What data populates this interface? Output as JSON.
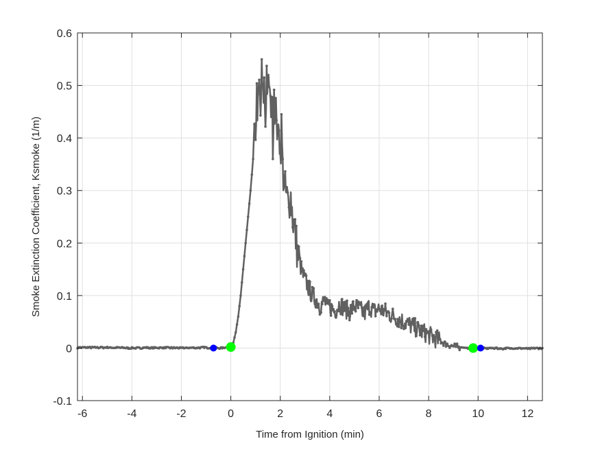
{
  "chart_data": {
    "type": "line",
    "title": "",
    "xlabel": "Time from Ignition (min)",
    "ylabel": "Smoke Extinction Coefficient, Ksmoke (1/m)",
    "xlim": [
      -6.2,
      12.6
    ],
    "ylim": [
      -0.1,
      0.6
    ],
    "xticks": [
      -6,
      -4,
      -2,
      0,
      2,
      4,
      6,
      8,
      10,
      12
    ],
    "yticks": [
      -0.1,
      0,
      0.1,
      0.2,
      0.3,
      0.4,
      0.5,
      0.6
    ],
    "xtick_labels": [
      "-6",
      "-4",
      "-2",
      "0",
      "2",
      "4",
      "6",
      "8",
      "10",
      "12"
    ],
    "ytick_labels": [
      "-0.1",
      "0",
      "0.1",
      "0.2",
      "0.3",
      "0.4",
      "0.5",
      "0.6"
    ],
    "grid": true,
    "legend": null,
    "series": [
      {
        "name": "Ksmoke",
        "color": "#606060",
        "marker": "dot",
        "x": [
          -6.2,
          -5.0,
          -4.0,
          -3.0,
          -2.0,
          -1.0,
          -0.5,
          0.0,
          0.1,
          0.2,
          0.3,
          0.4,
          0.5,
          0.6,
          0.7,
          0.8,
          0.9,
          1.0,
          1.05,
          1.1,
          1.15,
          1.2,
          1.25,
          1.3,
          1.35,
          1.4,
          1.45,
          1.5,
          1.55,
          1.6,
          1.65,
          1.7,
          1.75,
          1.8,
          1.85,
          1.9,
          1.95,
          2.0,
          2.05,
          2.1,
          2.2,
          2.3,
          2.35,
          2.4,
          2.5,
          2.6,
          2.7,
          2.8,
          2.9,
          3.0,
          3.1,
          3.2,
          3.3,
          3.4,
          3.5,
          3.6,
          3.7,
          3.8,
          3.9,
          4.0,
          4.2,
          4.4,
          4.6,
          4.8,
          5.0,
          5.2,
          5.4,
          5.6,
          5.8,
          6.0,
          6.2,
          6.4,
          6.6,
          6.8,
          7.0,
          7.2,
          7.4,
          7.6,
          7.8,
          8.0,
          8.2,
          8.4,
          8.6,
          8.8,
          9.0,
          9.2,
          9.4,
          9.6,
          9.8,
          10.0,
          10.5,
          11.0,
          11.5,
          12.0,
          12.6
        ],
        "y": [
          0.001,
          0.001,
          0.0,
          0.001,
          0.0,
          0.001,
          0.0,
          0.002,
          0.01,
          0.03,
          0.06,
          0.1,
          0.15,
          0.2,
          0.25,
          0.3,
          0.36,
          0.42,
          0.48,
          0.45,
          0.5,
          0.44,
          0.52,
          0.47,
          0.5,
          0.43,
          0.53,
          0.48,
          0.51,
          0.45,
          0.49,
          0.4,
          0.5,
          0.43,
          0.46,
          0.38,
          0.44,
          0.36,
          0.42,
          0.34,
          0.3,
          0.28,
          0.26,
          0.3,
          0.25,
          0.22,
          0.18,
          0.16,
          0.14,
          0.13,
          0.12,
          0.11,
          0.1,
          0.095,
          0.09,
          0.08,
          0.085,
          0.09,
          0.075,
          0.08,
          0.07,
          0.085,
          0.075,
          0.07,
          0.08,
          0.075,
          0.065,
          0.08,
          0.07,
          0.075,
          0.07,
          0.065,
          0.06,
          0.055,
          0.05,
          0.045,
          0.04,
          0.035,
          0.03,
          0.025,
          0.02,
          0.015,
          0.01,
          0.006,
          0.004,
          0.002,
          0.001,
          0.0,
          0.0,
          -0.001,
          0.0,
          -0.001,
          0.0,
          -0.001,
          0.0
        ]
      }
    ],
    "annotations": [
      {
        "type": "marker",
        "color": "#0000ff",
        "x": -0.7,
        "y": 0.0,
        "label": "blue start marker"
      },
      {
        "type": "marker",
        "color": "#00ff00",
        "x": 0.0,
        "y": 0.002,
        "label": "green ignition marker"
      },
      {
        "type": "marker",
        "color": "#00ff00",
        "x": 9.8,
        "y": 0.0,
        "label": "green end marker"
      },
      {
        "type": "marker",
        "color": "#0000ff",
        "x": 10.1,
        "y": 0.0,
        "label": "blue end marker"
      }
    ]
  },
  "colors": {
    "line": "#606060",
    "axis": "#262626",
    "grid": "#dfdfdf",
    "blue_marker": "#0000ff",
    "green_marker": "#00ff00"
  }
}
